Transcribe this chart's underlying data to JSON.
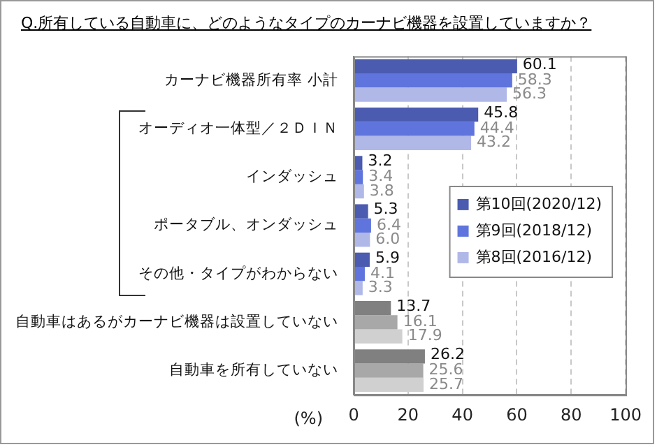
{
  "chart_data": {
    "type": "bar",
    "orientation": "horizontal",
    "title": "Q.所有している自動車に、どのようなタイプのカーナビ機器を設置していますか？",
    "xlabel": "(%)",
    "categories": [
      "カーナビ機器所有率 小計",
      "オーディオ一体型／２ＤＩＮ",
      "インダッシュ",
      "ポータブル、オンダッシュ",
      "その他・タイプがわからない",
      "自動車はあるがカーナビ機器は設置していない",
      "自動車を所有していない"
    ],
    "series": [
      {
        "name": "第10回(2020/12)",
        "color": "#4a5bb0",
        "colors": [
          "#4a5bb0",
          "#4a5bb0",
          "#4a5bb0",
          "#4a5bb0",
          "#4a5bb0",
          "#808080",
          "#808080"
        ],
        "values": [
          60.1,
          45.8,
          3.2,
          5.3,
          5.9,
          13.7,
          26.2
        ],
        "value_labels": [
          "60.1",
          "45.8",
          "3.2",
          "5.3",
          "5.9",
          "13.7",
          "26.2"
        ]
      },
      {
        "name": "第9回(2018/12)",
        "color": "#5f74dc",
        "colors": [
          "#5f74dc",
          "#5f74dc",
          "#5f74dc",
          "#5f74dc",
          "#5f74dc",
          "#a8a8a8",
          "#a8a8a8"
        ],
        "values": [
          58.3,
          44.4,
          3.4,
          6.4,
          4.1,
          16.1,
          25.6
        ],
        "value_labels": [
          "58.3",
          "44.4",
          "3.4",
          "6.4",
          "4.1",
          "16.1",
          "25.6"
        ]
      },
      {
        "name": "第8回(2016/12)",
        "color": "#b0b8e8",
        "colors": [
          "#b0b8e8",
          "#b0b8e8",
          "#b0b8e8",
          "#b0b8e8",
          "#b0b8e8",
          "#d0d0d0",
          "#d0d0d0"
        ],
        "values": [
          56.3,
          43.2,
          3.8,
          6.0,
          3.3,
          17.9,
          25.7
        ],
        "value_labels": [
          "56.3",
          "43.2",
          "3.8",
          "6.0",
          "3.3",
          "17.9",
          "25.7"
        ]
      }
    ],
    "xlim": [
      0,
      100
    ],
    "xticks": [
      0,
      20,
      40,
      60,
      80,
      100
    ],
    "grid": "x",
    "legend": "right"
  }
}
